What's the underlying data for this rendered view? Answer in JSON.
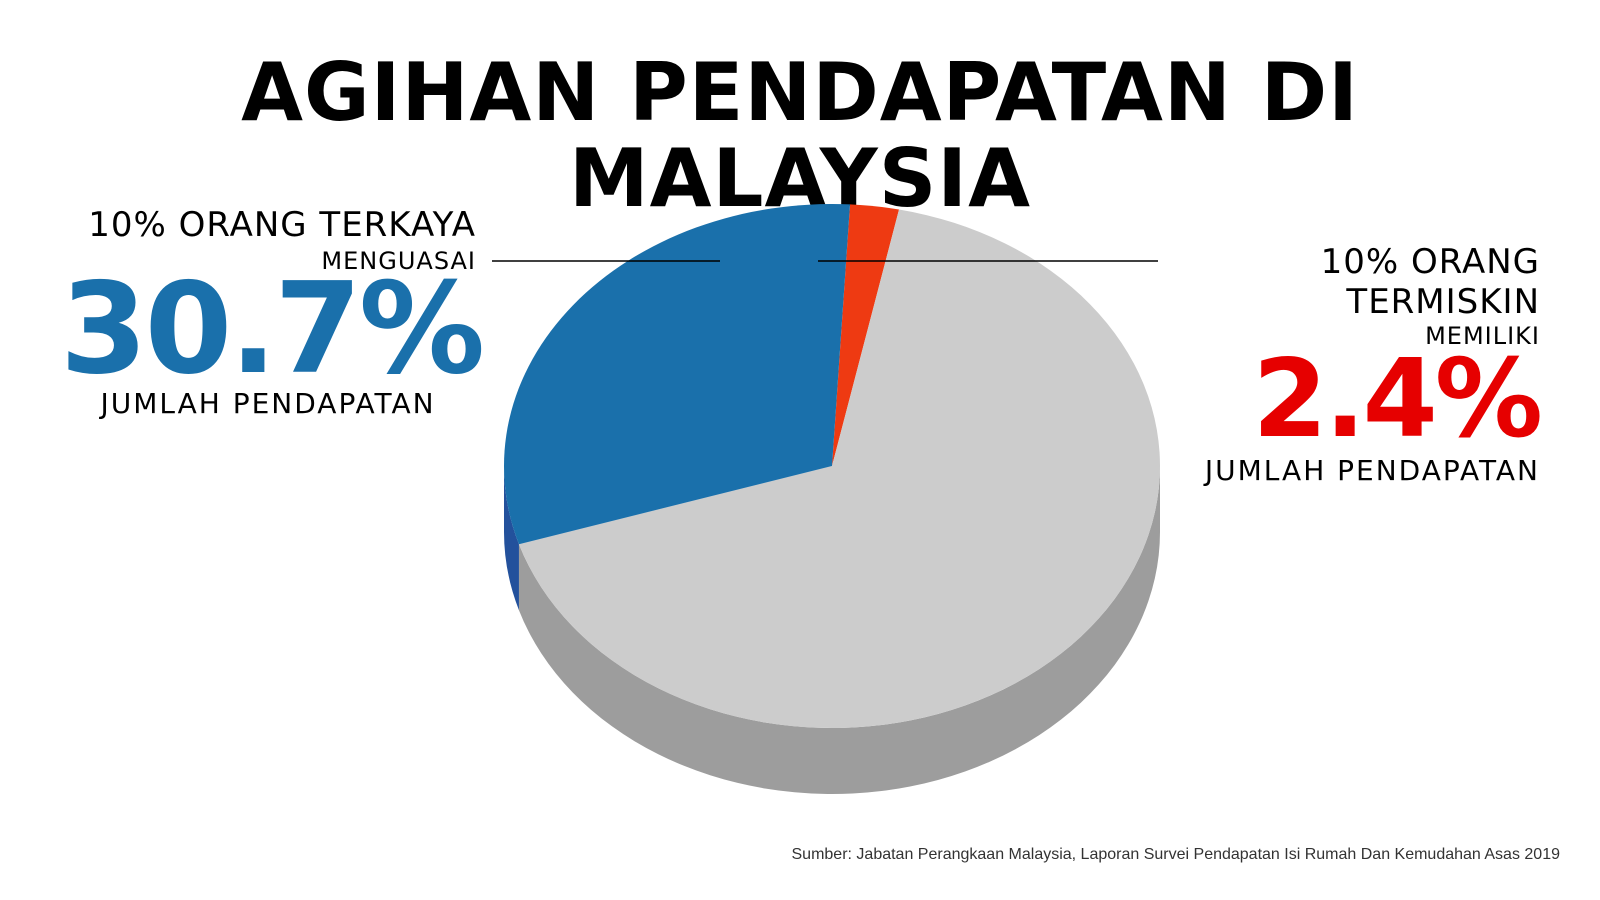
{
  "title": "AGIHAN PENDAPATAN DI MALAYSIA",
  "left_label": {
    "heading": "10% ORANG TERKAYA",
    "verb": "MENGUASAI",
    "value": "30.7%",
    "caption": "JUMLAH PENDAPATAN"
  },
  "right_label": {
    "heading": "10% ORANG TERMISKIN",
    "verb": "MEMILIKI",
    "value": "2.4%",
    "caption": "JUMLAH PENDAPATAN"
  },
  "source": "Sumber: Jabatan Perangkaan Malaysia, Laporan Survei Pendapatan Isi Rumah Dan Kemudahan Asas 2019",
  "chart_data": {
    "type": "pie",
    "title": "AGIHAN PENDAPATAN DI MALAYSIA",
    "slices": [
      {
        "label": "10% ORANG TERMISKIN",
        "value": 2.4,
        "color": "#ee3a12",
        "side_color": "#c02e0e"
      },
      {
        "label": "",
        "value": 66.9,
        "color": "#cccccc",
        "side_color": "#9d9d9d"
      },
      {
        "label": "10% ORANG TERKAYA",
        "value": 30.7,
        "color": "#1a70ab",
        "side_color": "#23519c"
      }
    ],
    "style": "3d"
  },
  "colors": {
    "blue": "#1a70ab",
    "red": "#e60000",
    "grey": "#cccccc"
  }
}
